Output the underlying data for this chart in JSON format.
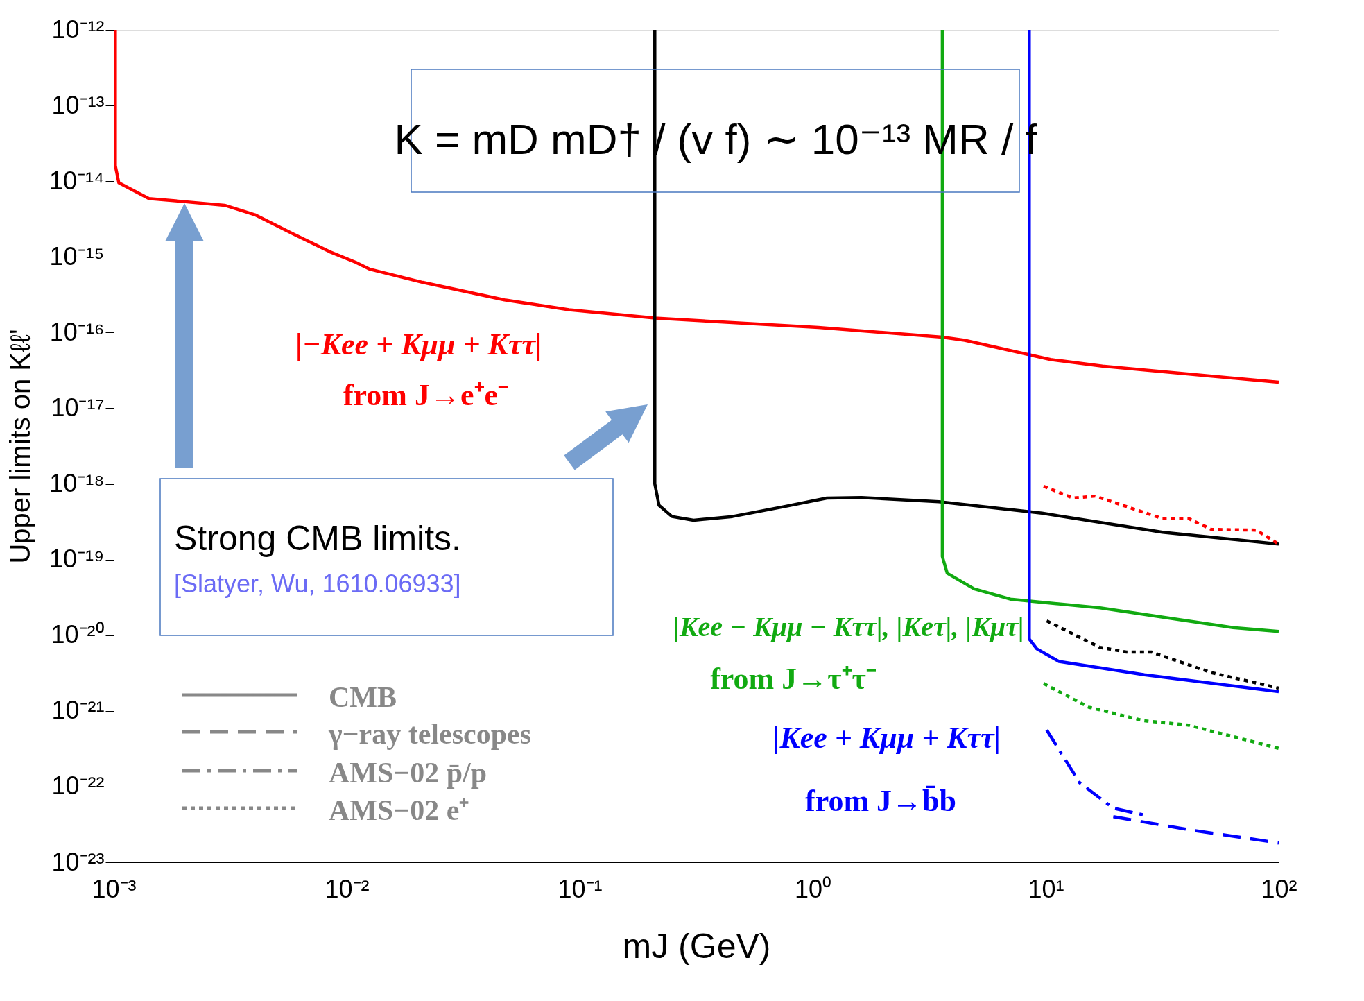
{
  "chart_data": {
    "type": "line",
    "xlabel": "mJ (GeV)",
    "ylabel": "Upper limits on Kℓℓ'",
    "log": "xy",
    "grid": false,
    "xlim": [
      0.001,
      100
    ],
    "ylim": [
      1e-23,
      1e-12
    ],
    "xticks": [
      {
        "value": 0.001,
        "label": "10⁻³"
      },
      {
        "value": 0.01,
        "label": "10⁻²"
      },
      {
        "value": 0.1,
        "label": "10⁻¹"
      },
      {
        "value": 1,
        "label": "10⁰"
      },
      {
        "value": 10,
        "label": "10¹"
      },
      {
        "value": 100,
        "label": "10²"
      }
    ],
    "yticks": [
      {
        "value": 1e-23,
        "label": "10⁻²³"
      },
      {
        "value": 1e-22,
        "label": "10⁻²²"
      },
      {
        "value": 1e-21,
        "label": "10⁻²¹"
      },
      {
        "value": 1e-20,
        "label": "10⁻²⁰"
      },
      {
        "value": 1e-19,
        "label": "10⁻¹⁹"
      },
      {
        "value": 1e-18,
        "label": "10⁻¹⁸"
      },
      {
        "value": 1e-17,
        "label": "10⁻¹⁷"
      },
      {
        "value": 1e-16,
        "label": "10⁻¹⁶"
      },
      {
        "value": 1e-15,
        "label": "10⁻¹⁵"
      },
      {
        "value": 1e-14,
        "label": "10⁻¹⁴"
      },
      {
        "value": 1e-13,
        "label": "10⁻¹³"
      },
      {
        "value": 1e-12,
        "label": "10⁻¹²"
      }
    ],
    "series": [
      {
        "color": "#ff0000",
        "line_style": "solid",
        "x": [
          0.001016,
          0.001016,
          0.001052,
          0.001416,
          0.001959,
          0.002992,
          0.004036,
          0.005916,
          0.00845,
          0.01091,
          0.0125,
          0.0212,
          0.0475,
          0.0899,
          0.21,
          1.057,
          3.6,
          4.49,
          10.5,
          17.5,
          100
        ],
        "values": [
          1e-12,
          1.6e-14,
          9.5e-15,
          5.9e-15,
          5.4e-15,
          4.8e-15,
          3.6e-15,
          2e-15,
          1.17e-15,
          8.5e-16,
          6.9e-16,
          4.6e-16,
          2.7e-16,
          2e-16,
          1.55e-16,
          1.17e-16,
          8.7e-17,
          7.9e-17,
          4.4e-17,
          3.6e-17,
          2.2e-17
        ]
      },
      {
        "color": "#000000",
        "line_style": "solid",
        "x": [
          0.21,
          0.21,
          0.219,
          0.249,
          0.308,
          0.452,
          0.753,
          1.15,
          1.62,
          3.48,
          9.64,
          31.7,
          100
        ],
        "values": [
          1e-12,
          1e-18,
          5.2e-19,
          3.7e-19,
          3.3e-19,
          3.7e-19,
          5e-19,
          6.5e-19,
          6.6e-19,
          5.8e-19,
          4.1e-19,
          2.3e-19,
          1.6e-19
        ]
      },
      {
        "color": "#11aa11",
        "line_style": "solid",
        "x": [
          3.6,
          3.6,
          3.78,
          4.93,
          7.05,
          17.1,
          63.7,
          100
        ],
        "values": [
          1e-12,
          1.1e-19,
          6.6e-20,
          4.1e-20,
          3e-20,
          2.3e-20,
          1.26e-20,
          1.12e-20
        ]
      },
      {
        "color": "#0000ff",
        "line_style": "solid",
        "x": [
          8.5,
          8.5,
          9.16,
          11.4,
          26.5,
          100
        ],
        "values": [
          1e-12,
          8.9e-21,
          6.6e-21,
          4.5e-21,
          3e-21,
          1.8e-21
        ]
      },
      {
        "color": "#ff0000",
        "line_style": "dotted",
        "x": [
          9.8,
          13.1,
          16.3,
          31.5,
          40.9,
          51.5,
          80.2,
          100
        ],
        "values": [
          9.3e-19,
          6.5e-19,
          6.9e-19,
          3.5e-19,
          3.5e-19,
          2.5e-19,
          2.45e-19,
          1.6e-19
        ]
      },
      {
        "color": "#000000",
        "line_style": "dotted",
        "x": [
          10.1,
          17.1,
          22.2,
          28.4,
          51.5,
          100
        ],
        "values": [
          1.55e-20,
          6.9e-21,
          6e-21,
          6e-21,
          3.2e-21,
          2e-21
        ]
      },
      {
        "color": "#11aa11",
        "line_style": "dotted",
        "x": [
          9.8,
          15.3,
          26.5,
          40.9,
          100
        ],
        "values": [
          2.3e-21,
          1.12e-21,
          7.4e-22,
          6.5e-22,
          3.2e-22
        ]
      },
      {
        "color": "#0000ff",
        "line_style": "dashdot",
        "x": [
          10.1,
          14.0,
          19.5,
          26.5
        ],
        "values": [
          5.6e-22,
          1.12e-22,
          5.2e-23,
          4.2e-23
        ]
      },
      {
        "color": "#0000ff",
        "line_style": "dashed",
        "x": [
          19.5,
          40.9,
          100
        ],
        "values": [
          4e-23,
          2.7e-23,
          1.8e-23
        ]
      }
    ],
    "annotations": [
      "K = mD mD† / (v f) ∼ 10⁻¹³ MR / f",
      "Strong CMB limits.",
      "[Slatyer, Wu, 1610.06933]",
      "|−Kee + Kμμ + Kττ|",
      "from J→e⁺e⁻",
      "|Kee − Kμμ − Kττ|, |Keτ|, |Kμτ|",
      "from J→τ⁺τ⁻",
      "|Kee + Kμμ + Kττ|",
      "from J→b̄b",
      "CMB",
      "γ−ray telescopes",
      "AMS−02  p̄/p",
      "AMS−02  e⁺"
    ]
  }
}
